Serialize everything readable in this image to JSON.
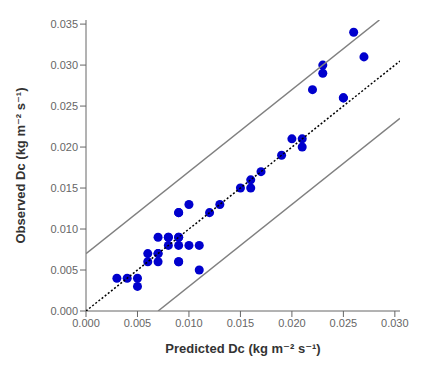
{
  "chart_data": {
    "type": "scatter",
    "xlabel": "Predicted Dc (kg m⁻² s⁻¹)",
    "ylabel": "Observed Dc (kg m⁻² s⁻¹)",
    "xlim": [
      0.0,
      0.0305
    ],
    "ylim": [
      0.0,
      0.0355
    ],
    "xticks": [
      {
        "value": 0.0,
        "label": "0.000"
      },
      0.005,
      {
        "value": 0.01,
        "label": "0.010"
      },
      0.015,
      {
        "value": 0.02,
        "label": "0.020"
      },
      0.025,
      {
        "value": 0.03,
        "label": "0.030"
      }
    ],
    "yticks": [
      {
        "value": 0.0,
        "label": "0.000"
      },
      0.005,
      {
        "value": 0.01,
        "label": "0.010"
      },
      0.015,
      {
        "value": 0.02,
        "label": "0.020"
      },
      0.025,
      {
        "value": 0.03,
        "label": "0.030"
      },
      0.035
    ],
    "grid": false,
    "series": [
      {
        "type": "scatter",
        "color": "#0000CD",
        "marker": "circle",
        "x": [
          0.003,
          0.004,
          0.005,
          0.005,
          0.006,
          0.006,
          0.007,
          0.007,
          0.007,
          0.007,
          0.008,
          0.008,
          0.008,
          0.009,
          0.009,
          0.009,
          0.009,
          0.009,
          0.009,
          0.009,
          0.01,
          0.01,
          0.011,
          0.011,
          0.012,
          0.013,
          0.015,
          0.016,
          0.016,
          0.017,
          0.019,
          0.02,
          0.021,
          0.021,
          0.022,
          0.023,
          0.023,
          0.025,
          0.025,
          0.026,
          0.027
        ],
        "values": [
          0.004,
          0.004,
          0.003,
          0.004,
          0.006,
          0.007,
          0.006,
          0.007,
          0.007,
          0.009,
          0.008,
          0.009,
          0.009,
          0.006,
          0.006,
          0.008,
          0.009,
          0.009,
          0.012,
          0.012,
          0.008,
          0.013,
          0.008,
          0.005,
          0.012,
          0.013,
          0.015,
          0.016,
          0.015,
          0.017,
          0.019,
          0.021,
          0.021,
          0.02,
          0.027,
          0.03,
          0.029,
          0.026,
          0.026,
          0.034,
          0.031
        ]
      },
      {
        "type": "line",
        "color": "black",
        "line_style": "dotted",
        "x": [
          0.0,
          0.0305
        ],
        "values": [
          0.0,
          0.0305
        ]
      },
      {
        "type": "line",
        "color": "#808080",
        "line_style": "solid",
        "x": [
          0.0,
          0.0285
        ],
        "values": [
          0.007,
          0.0355
        ]
      },
      {
        "type": "line",
        "color": "#808080",
        "line_style": "solid",
        "x": [
          0.007,
          0.0305
        ],
        "values": [
          0.0,
          0.0235
        ]
      }
    ]
  }
}
